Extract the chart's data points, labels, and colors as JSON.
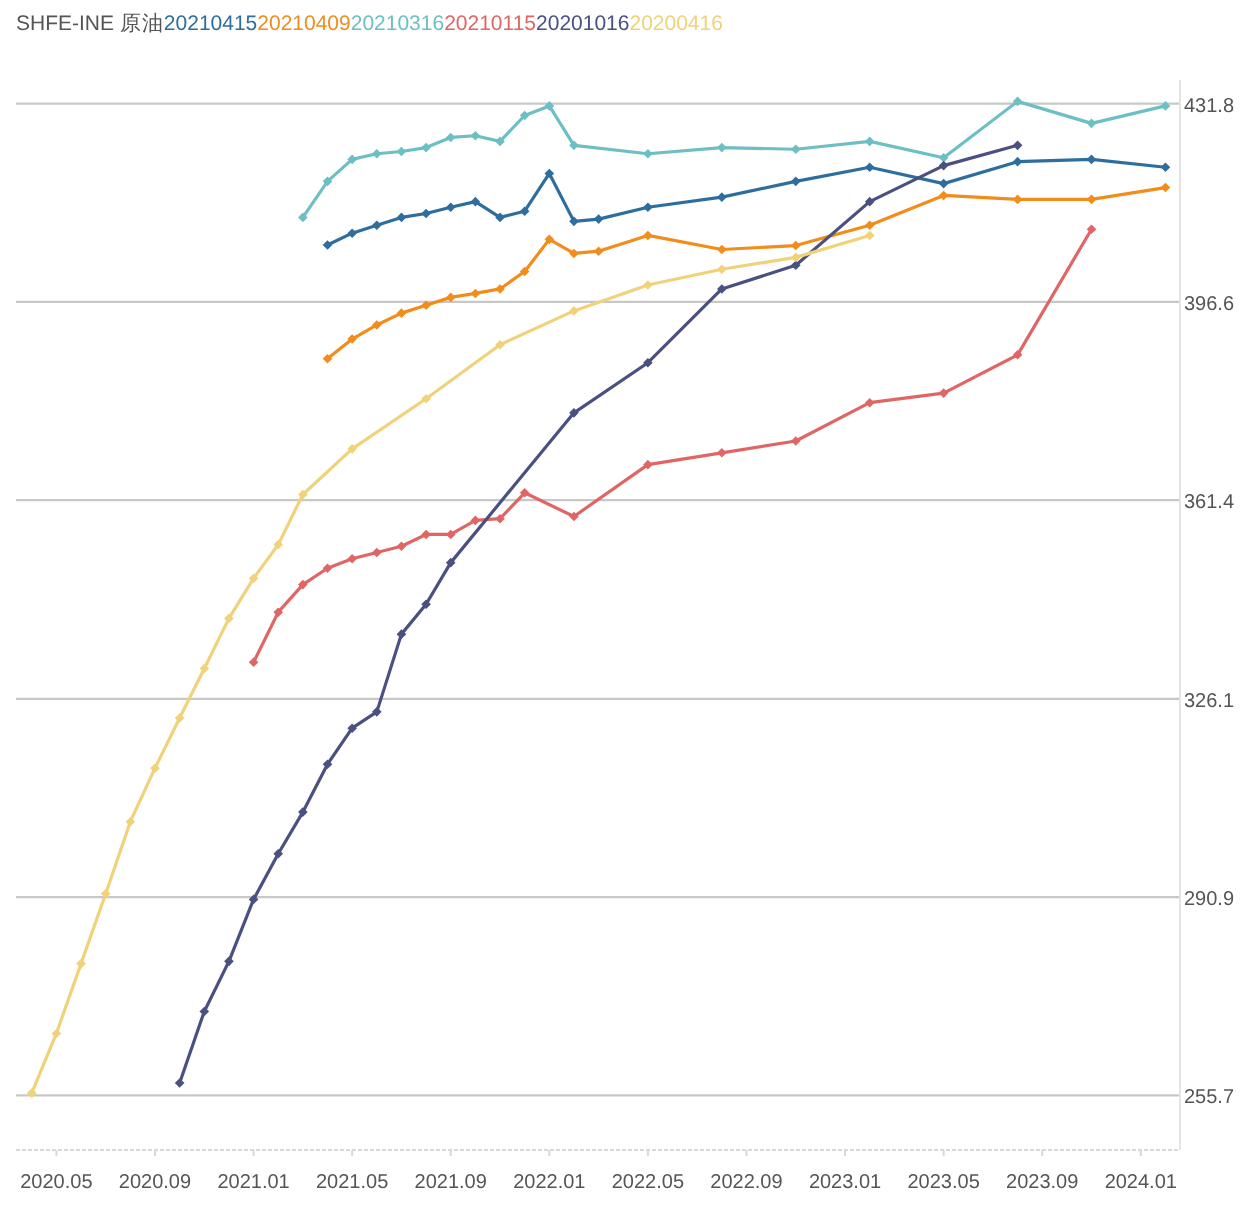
{
  "chart_data": {
    "type": "line",
    "title": "SHFE-INE 原油",
    "legend": "top left",
    "grid": "y",
    "marker": "diamond",
    "line_style": "solid",
    "xlim": [
      "2020-03-12",
      "2024-02-19"
    ],
    "ylim": [
      246,
      436
    ],
    "xticks": [
      {
        "value": "2020-05",
        "label": "2020.05"
      },
      {
        "value": "2020-09",
        "label": "2020.09"
      },
      {
        "value": "2021-01",
        "label": "2021.01"
      },
      {
        "value": "2021-05",
        "label": "2021.05"
      },
      {
        "value": "2021-09",
        "label": "2021.09"
      },
      {
        "value": "2022-01",
        "label": "2022.01"
      },
      {
        "value": "2022-05",
        "label": "2022.05"
      },
      {
        "value": "2022-09",
        "label": "2022.09"
      },
      {
        "value": "2023-01",
        "label": "2023.01"
      },
      {
        "value": "2023-05",
        "label": "2023.05"
      },
      {
        "value": "2023-09",
        "label": "2023.09"
      },
      {
        "value": "2024-01",
        "label": "2024.01"
      }
    ],
    "yticks": [
      255.7,
      290.9,
      326.1,
      361.4,
      396.6,
      431.8
    ],
    "series": [
      {
        "name": "20210415",
        "color": "#2e6e9e",
        "x": [
          "2021-04",
          "2021-05",
          "2021-06",
          "2021-07",
          "2021-08",
          "2021-09",
          "2021-10",
          "2021-11",
          "2021-12",
          "2022-01",
          "2022-02",
          "2022-03",
          "2022-05",
          "2022-08",
          "2022-11",
          "2023-02",
          "2023-05",
          "2023-08",
          "2023-11",
          "2024-02"
        ],
        "values": [
          406.7,
          408.8,
          410.2,
          411.6,
          412.3,
          413.4,
          414.4,
          411.6,
          412.7,
          419.4,
          410.9,
          411.3,
          413.4,
          415.2,
          418.0,
          420.5,
          417.6,
          421.5,
          421.9,
          420.5
        ]
      },
      {
        "name": "20210409",
        "color": "#f28c1a",
        "x": [
          "2021-04",
          "2021-05",
          "2021-06",
          "2021-07",
          "2021-08",
          "2021-09",
          "2021-10",
          "2021-11",
          "2021-12",
          "2022-01",
          "2022-02",
          "2022-03",
          "2022-05",
          "2022-08",
          "2022-11",
          "2023-02",
          "2023-05",
          "2023-08",
          "2023-11",
          "2024-02"
        ],
        "values": [
          386.5,
          390.0,
          392.5,
          394.6,
          396.0,
          397.4,
          398.1,
          398.9,
          402.0,
          407.7,
          405.2,
          405.6,
          408.4,
          405.9,
          406.6,
          410.2,
          415.5,
          414.8,
          414.8,
          416.9
        ]
      },
      {
        "name": "20210316",
        "color": "#6cbfc4",
        "x": [
          "2021-03",
          "2021-04",
          "2021-05",
          "2021-06",
          "2021-07",
          "2021-08",
          "2021-09",
          "2021-10",
          "2021-11",
          "2021-12",
          "2022-01",
          "2022-02",
          "2022-05",
          "2022-08",
          "2022-11",
          "2023-02",
          "2023-05",
          "2023-08",
          "2023-11",
          "2024-02"
        ],
        "values": [
          411.6,
          418.0,
          421.9,
          422.9,
          423.3,
          424.0,
          425.8,
          426.1,
          425.1,
          429.7,
          431.4,
          424.4,
          422.9,
          424.0,
          423.7,
          425.1,
          422.2,
          432.2,
          428.3,
          431.4
        ]
      },
      {
        "name": "20210115",
        "color": "#e06666",
        "x": [
          "2021-01",
          "2021-02",
          "2021-03",
          "2021-04",
          "2021-05",
          "2021-06",
          "2021-07",
          "2021-08",
          "2021-09",
          "2021-10",
          "2021-11",
          "2021-12",
          "2022-02",
          "2022-05",
          "2022-08",
          "2022-11",
          "2023-02",
          "2023-05",
          "2023-08",
          "2023-11"
        ],
        "values": [
          332.6,
          341.5,
          346.4,
          349.3,
          351.0,
          352.1,
          353.2,
          355.3,
          355.3,
          357.8,
          358.1,
          362.7,
          358.5,
          367.7,
          369.8,
          371.9,
          378.7,
          380.4,
          387.2,
          409.5
        ]
      },
      {
        "name": "20201016",
        "color": "#4a5080",
        "x": [
          "2020-10",
          "2020-11",
          "2020-12",
          "2021-01",
          "2021-02",
          "2021-03",
          "2021-04",
          "2021-05",
          "2021-06",
          "2021-07",
          "2021-08",
          "2021-09",
          "2022-02",
          "2022-05",
          "2022-08",
          "2022-11",
          "2023-02",
          "2023-05",
          "2023-08"
        ],
        "values": [
          257.9,
          270.6,
          279.5,
          290.5,
          298.6,
          306.0,
          314.5,
          320.9,
          323.8,
          337.6,
          342.9,
          350.3,
          376.9,
          385.8,
          398.9,
          403.1,
          414.4,
          420.8,
          424.4
        ]
      },
      {
        "name": "20200416",
        "color": "#f0d27a",
        "x": [
          "2020-04",
          "2020-05",
          "2020-06",
          "2020-07",
          "2020-08",
          "2020-09",
          "2020-10",
          "2020-11",
          "2020-12",
          "2021-01",
          "2021-02",
          "2021-03",
          "2021-05",
          "2021-08",
          "2021-11",
          "2022-02",
          "2022-05",
          "2022-08",
          "2022-11",
          "2023-02"
        ],
        "values": [
          256.1,
          266.7,
          279.1,
          291.5,
          304.3,
          313.8,
          322.7,
          331.5,
          340.4,
          347.5,
          353.5,
          362.4,
          370.5,
          379.4,
          389.0,
          395.0,
          399.6,
          402.4,
          404.5,
          408.4
        ]
      }
    ]
  }
}
